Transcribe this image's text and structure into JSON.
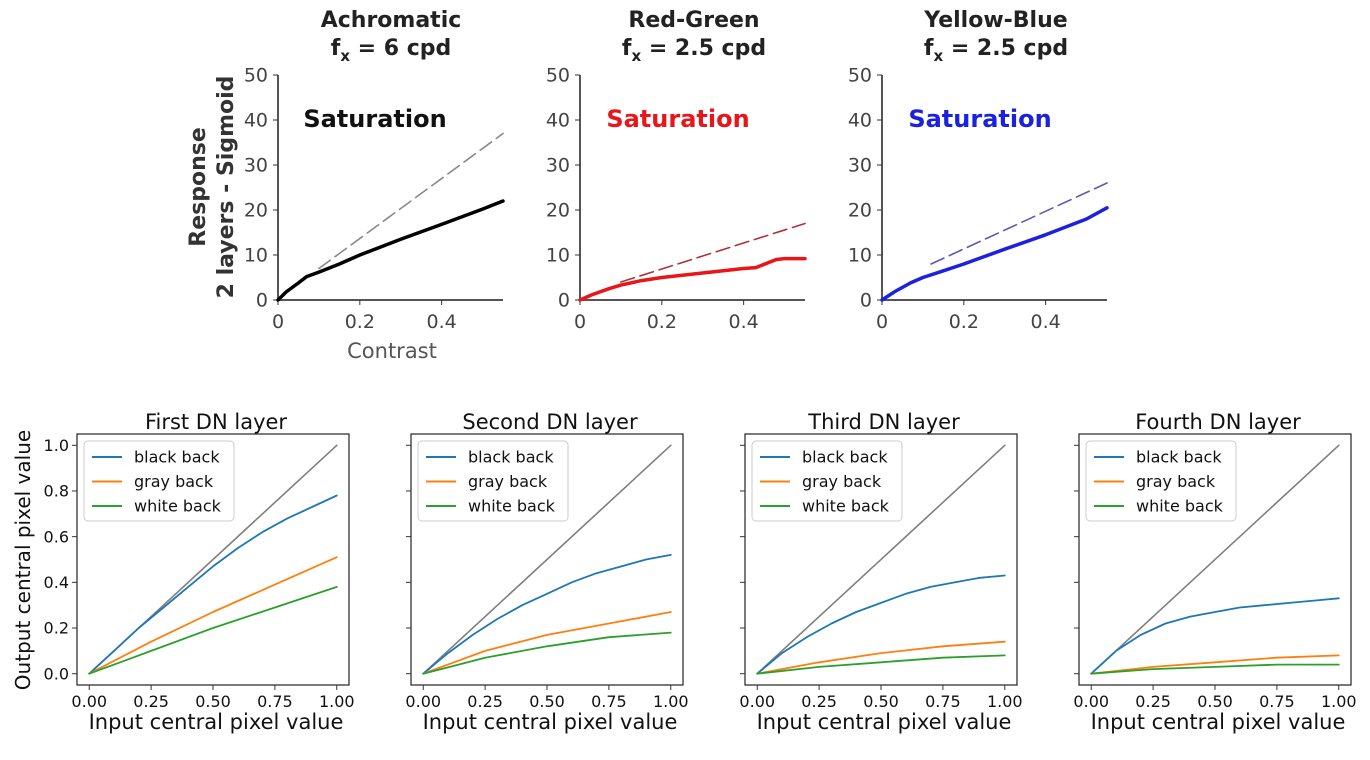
{
  "figure": {
    "top_ylabel_line1": "Response",
    "top_ylabel_line2": "2 layers - Sigmoid",
    "top_xlabel": "Contrast",
    "bottom_ylabel": "Output central pixel value",
    "bottom_xlabel": "Input central pixel value"
  },
  "colors": {
    "achromatic": "#000000",
    "achromatic_dash": "#888888",
    "red_green": "#e8161b",
    "red_green_dash": "#b0303a",
    "yellow_blue": "#1a22e0",
    "yellow_blue_dash": "#5a5ab0",
    "black_back": "#1f77b4",
    "gray_back": "#ff7f0e",
    "white_back": "#2ca02c",
    "identity": "#7f7f7f",
    "axis": "#333333"
  },
  "chart_data": [
    {
      "id": "top-achromatic",
      "type": "line",
      "title_line1": "Achromatic",
      "title_line2": "f",
      "title_sub": "x",
      "title_rest": " = 6 cpd",
      "annotation": "Saturation",
      "xlim": [
        0,
        0.55
      ],
      "ylim": [
        0,
        50
      ],
      "xticks": [
        0,
        0.2,
        0.4
      ],
      "xtick_labels": [
        "0",
        "0.2",
        "0.4"
      ],
      "yticks": [
        0,
        10,
        20,
        30,
        40,
        50
      ],
      "ytick_labels": [
        "0",
        "10",
        "20",
        "30",
        "40",
        "50"
      ],
      "series": [
        {
          "name": "response",
          "style": "solid",
          "color_key": "achromatic",
          "x": [
            0,
            0.02,
            0.05,
            0.07,
            0.1,
            0.15,
            0.2,
            0.3,
            0.4,
            0.5,
            0.55
          ],
          "y": [
            0,
            1.8,
            3.8,
            5.2,
            6.2,
            8.0,
            10.0,
            13.5,
            16.8,
            20.2,
            22
          ]
        },
        {
          "name": "linear",
          "style": "dashed",
          "color_key": "achromatic_dash",
          "x": [
            0.1,
            0.55
          ],
          "y": [
            7.0,
            37
          ]
        }
      ]
    },
    {
      "id": "top-red-green",
      "type": "line",
      "title_line1": "Red-Green",
      "title_line2": "f",
      "title_sub": "x",
      "title_rest": " = 2.5 cpd",
      "annotation": "Saturation",
      "xlim": [
        0,
        0.55
      ],
      "ylim": [
        0,
        50
      ],
      "xticks": [
        0,
        0.2,
        0.4
      ],
      "xtick_labels": [
        "0",
        "0.2",
        "0.4"
      ],
      "yticks": [
        0,
        10,
        20,
        30,
        40,
        50
      ],
      "ytick_labels": [
        "0",
        "10",
        "20",
        "30",
        "40",
        "50"
      ],
      "series": [
        {
          "name": "response",
          "style": "solid",
          "color_key": "red_green",
          "x": [
            0,
            0.03,
            0.07,
            0.1,
            0.15,
            0.2,
            0.3,
            0.4,
            0.43,
            0.48,
            0.5,
            0.55
          ],
          "y": [
            0,
            1.2,
            2.5,
            3.3,
            4.3,
            5.0,
            6.0,
            7.0,
            7.2,
            9.0,
            9.2,
            9.2
          ]
        },
        {
          "name": "linear",
          "style": "dashed",
          "color_key": "red_green_dash",
          "x": [
            0.1,
            0.55
          ],
          "y": [
            4.0,
            17
          ]
        }
      ]
    },
    {
      "id": "top-yellow-blue",
      "type": "line",
      "title_line1": "Yellow-Blue",
      "title_line2": "f",
      "title_sub": "x",
      "title_rest": " = 2.5 cpd",
      "annotation": "Saturation",
      "xlim": [
        0,
        0.55
      ],
      "ylim": [
        0,
        50
      ],
      "xticks": [
        0,
        0.2,
        0.4
      ],
      "xtick_labels": [
        "0",
        "0.2",
        "0.4"
      ],
      "yticks": [
        0,
        10,
        20,
        30,
        40,
        50
      ],
      "ytick_labels": [
        "0",
        "10",
        "20",
        "30",
        "40",
        "50"
      ],
      "series": [
        {
          "name": "response",
          "style": "solid",
          "color_key": "yellow_blue",
          "x": [
            0,
            0.03,
            0.07,
            0.1,
            0.15,
            0.2,
            0.3,
            0.4,
            0.5,
            0.55
          ],
          "y": [
            0,
            1.8,
            3.8,
            5.0,
            6.5,
            8.0,
            11.3,
            14.5,
            18.0,
            20.5
          ]
        },
        {
          "name": "linear",
          "style": "dashed",
          "color_key": "yellow_blue_dash",
          "x": [
            0.12,
            0.55
          ],
          "y": [
            8.0,
            26
          ]
        }
      ]
    },
    {
      "id": "bottom-first",
      "type": "line",
      "title": "First DN layer",
      "xlim": [
        0,
        1
      ],
      "ylim": [
        0,
        1
      ],
      "xtick_labels": [
        "0.00",
        "0.25",
        "0.50",
        "0.75",
        "1.00"
      ],
      "xticks": [
        0,
        0.25,
        0.5,
        0.75,
        1.0
      ],
      "ytick_labels": [
        "0.0",
        "0.2",
        "0.4",
        "0.6",
        "0.8",
        "1.0"
      ],
      "yticks": [
        0,
        0.2,
        0.4,
        0.6,
        0.8,
        1.0
      ],
      "show_yticklabels": true,
      "legend": [
        "black back",
        "gray back",
        "white back"
      ],
      "series": [
        {
          "name": "identity",
          "color_key": "identity",
          "x": [
            0,
            1
          ],
          "y": [
            0,
            1
          ]
        },
        {
          "name": "black back",
          "color_key": "black_back",
          "x": [
            0,
            0.1,
            0.2,
            0.3,
            0.4,
            0.5,
            0.6,
            0.7,
            0.8,
            0.9,
            1.0
          ],
          "y": [
            0,
            0.1,
            0.2,
            0.29,
            0.38,
            0.47,
            0.55,
            0.62,
            0.68,
            0.73,
            0.78
          ]
        },
        {
          "name": "gray back",
          "color_key": "gray_back",
          "x": [
            0,
            0.25,
            0.5,
            0.75,
            1.0
          ],
          "y": [
            0,
            0.14,
            0.27,
            0.39,
            0.51
          ]
        },
        {
          "name": "white back",
          "color_key": "white_back",
          "x": [
            0,
            0.25,
            0.5,
            0.75,
            1.0
          ],
          "y": [
            0,
            0.1,
            0.2,
            0.29,
            0.38
          ]
        }
      ]
    },
    {
      "id": "bottom-second",
      "type": "line",
      "title": "Second DN layer",
      "xlim": [
        0,
        1
      ],
      "ylim": [
        0,
        1
      ],
      "xtick_labels": [
        "0.00",
        "0.25",
        "0.50",
        "0.75",
        "1.00"
      ],
      "xticks": [
        0,
        0.25,
        0.5,
        0.75,
        1.0
      ],
      "yticks": [
        0,
        0.2,
        0.4,
        0.6,
        0.8,
        1.0
      ],
      "show_yticklabels": false,
      "legend": [
        "black back",
        "gray back",
        "white back"
      ],
      "series": [
        {
          "name": "identity",
          "color_key": "identity",
          "x": [
            0,
            1
          ],
          "y": [
            0,
            1
          ]
        },
        {
          "name": "black back",
          "color_key": "black_back",
          "x": [
            0,
            0.1,
            0.2,
            0.3,
            0.4,
            0.5,
            0.6,
            0.7,
            0.8,
            0.9,
            1.0
          ],
          "y": [
            0,
            0.09,
            0.17,
            0.24,
            0.3,
            0.35,
            0.4,
            0.44,
            0.47,
            0.5,
            0.52
          ]
        },
        {
          "name": "gray back",
          "color_key": "gray_back",
          "x": [
            0,
            0.25,
            0.5,
            0.75,
            1.0
          ],
          "y": [
            0,
            0.1,
            0.17,
            0.22,
            0.27
          ]
        },
        {
          "name": "white back",
          "color_key": "white_back",
          "x": [
            0,
            0.25,
            0.5,
            0.75,
            1.0
          ],
          "y": [
            0,
            0.07,
            0.12,
            0.16,
            0.18
          ]
        }
      ]
    },
    {
      "id": "bottom-third",
      "type": "line",
      "title": "Third DN layer",
      "xlim": [
        0,
        1
      ],
      "ylim": [
        0,
        1
      ],
      "xtick_labels": [
        "0.00",
        "0.25",
        "0.50",
        "0.75",
        "1.00"
      ],
      "xticks": [
        0,
        0.25,
        0.5,
        0.75,
        1.0
      ],
      "yticks": [
        0,
        0.2,
        0.4,
        0.6,
        0.8,
        1.0
      ],
      "show_yticklabels": false,
      "legend": [
        "black back",
        "gray back",
        "white back"
      ],
      "series": [
        {
          "name": "identity",
          "color_key": "identity",
          "x": [
            0,
            1
          ],
          "y": [
            0,
            1
          ]
        },
        {
          "name": "black back",
          "color_key": "black_back",
          "x": [
            0,
            0.1,
            0.2,
            0.3,
            0.4,
            0.5,
            0.6,
            0.7,
            0.8,
            0.9,
            1.0
          ],
          "y": [
            0,
            0.09,
            0.16,
            0.22,
            0.27,
            0.31,
            0.35,
            0.38,
            0.4,
            0.42,
            0.43
          ]
        },
        {
          "name": "gray back",
          "color_key": "gray_back",
          "x": [
            0,
            0.25,
            0.5,
            0.75,
            1.0
          ],
          "y": [
            0,
            0.05,
            0.09,
            0.12,
            0.14
          ]
        },
        {
          "name": "white back",
          "color_key": "white_back",
          "x": [
            0,
            0.25,
            0.5,
            0.75,
            1.0
          ],
          "y": [
            0,
            0.03,
            0.05,
            0.07,
            0.08
          ]
        }
      ]
    },
    {
      "id": "bottom-fourth",
      "type": "line",
      "title": "Fourth DN layer",
      "xlim": [
        0,
        1
      ],
      "ylim": [
        0,
        1
      ],
      "xtick_labels": [
        "0.00",
        "0.25",
        "0.50",
        "0.75",
        "1.00"
      ],
      "xticks": [
        0,
        0.25,
        0.5,
        0.75,
        1.0
      ],
      "yticks": [
        0,
        0.2,
        0.4,
        0.6,
        0.8,
        1.0
      ],
      "show_yticklabels": false,
      "legend": [
        "black back",
        "gray back",
        "white back"
      ],
      "series": [
        {
          "name": "identity",
          "color_key": "identity",
          "x": [
            0,
            1
          ],
          "y": [
            0,
            1
          ]
        },
        {
          "name": "black back",
          "color_key": "black_back",
          "x": [
            0,
            0.1,
            0.2,
            0.3,
            0.4,
            0.5,
            0.6,
            0.7,
            0.8,
            0.9,
            1.0
          ],
          "y": [
            0,
            0.1,
            0.17,
            0.22,
            0.25,
            0.27,
            0.29,
            0.3,
            0.31,
            0.32,
            0.33
          ]
        },
        {
          "name": "gray back",
          "color_key": "gray_back",
          "x": [
            0,
            0.25,
            0.5,
            0.75,
            1.0
          ],
          "y": [
            0,
            0.03,
            0.05,
            0.07,
            0.08
          ]
        },
        {
          "name": "white back",
          "color_key": "white_back",
          "x": [
            0,
            0.25,
            0.5,
            0.75,
            1.0
          ],
          "y": [
            0,
            0.02,
            0.03,
            0.04,
            0.04
          ]
        }
      ]
    }
  ]
}
